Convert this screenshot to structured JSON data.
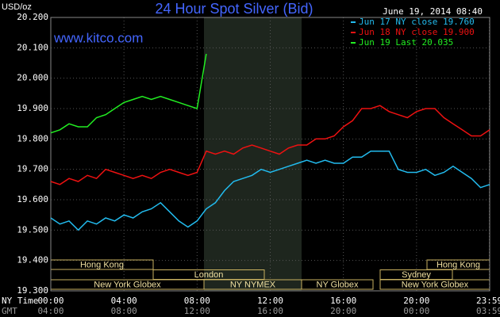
{
  "chart_data": {
    "type": "line",
    "title": "24 Hour Spot Silver (Bid)",
    "timestamp": "June 19, 2014 08:40",
    "source": "www.kitco.com",
    "y_label": "USD/oz",
    "x_label": "NY Time",
    "x2_label": "GMT",
    "xlim": [
      0,
      24
    ],
    "xticks": [
      {
        "value": 0,
        "label": "00:00"
      },
      {
        "value": 4,
        "label": "04:00"
      },
      {
        "value": 8,
        "label": "08:00"
      },
      {
        "value": 12,
        "label": "12:00"
      },
      {
        "value": 16,
        "label": "16:00"
      },
      {
        "value": 20,
        "label": "20:00"
      },
      {
        "value": 23.983,
        "label": "23:59"
      }
    ],
    "x2ticks": [
      {
        "value": 0,
        "label": "04:00"
      },
      {
        "value": 4,
        "label": "08:00"
      },
      {
        "value": 8,
        "label": "12:00"
      },
      {
        "value": 12,
        "label": "16:00"
      },
      {
        "value": 16,
        "label": "20:00"
      },
      {
        "value": 20,
        "label": "00:00"
      },
      {
        "value": 23.983,
        "label": "03:59"
      }
    ],
    "ylim": [
      19.3,
      20.2
    ],
    "yticks": [
      {
        "value": 19.3,
        "label": "19.300"
      },
      {
        "value": 19.4,
        "label": "19.400"
      },
      {
        "value": 19.5,
        "label": "19.500"
      },
      {
        "value": 19.6,
        "label": "19.600"
      },
      {
        "value": 19.7,
        "label": "19.700"
      },
      {
        "value": 19.8,
        "label": "19.800"
      },
      {
        "value": 19.9,
        "label": "19.900"
      },
      {
        "value": 20.0,
        "label": "20.000"
      },
      {
        "value": 20.1,
        "label": "20.100"
      },
      {
        "value": 20.2,
        "label": "20.200"
      }
    ],
    "grid": true,
    "x": [
      0,
      0.5,
      1,
      1.5,
      2,
      2.5,
      3,
      3.5,
      4,
      4.5,
      5,
      5.5,
      6,
      6.5,
      7,
      7.5,
      8,
      8.5,
      9,
      9.5,
      10,
      10.5,
      11,
      11.5,
      12,
      12.5,
      13,
      13.5,
      14,
      14.5,
      15,
      15.5,
      16,
      16.5,
      17,
      17.5,
      18,
      18.5,
      19,
      19.5,
      20,
      20.5,
      21,
      21.5,
      22,
      22.5,
      23,
      23.5,
      24
    ],
    "series": [
      {
        "name": "Jun 17 NY close 19.760",
        "color": "#22bbee",
        "values": [
          19.54,
          19.52,
          19.53,
          19.5,
          19.53,
          19.52,
          19.54,
          19.53,
          19.55,
          19.54,
          19.56,
          19.57,
          19.59,
          19.56,
          19.53,
          19.51,
          19.53,
          19.57,
          19.59,
          19.63,
          19.66,
          19.67,
          19.68,
          19.7,
          19.69,
          19.7,
          19.71,
          19.72,
          19.73,
          19.72,
          19.73,
          19.72,
          19.72,
          19.74,
          19.74,
          19.76,
          19.76,
          19.76,
          19.7,
          19.69,
          19.69,
          19.7,
          19.68,
          19.69,
          19.71,
          19.69,
          19.67,
          19.64,
          19.65
        ]
      },
      {
        "name": "Jun 18 NY close 19.900",
        "color": "#ee1111",
        "values": [
          19.66,
          19.65,
          19.67,
          19.66,
          19.68,
          19.67,
          19.7,
          19.69,
          19.68,
          19.67,
          19.68,
          19.67,
          19.69,
          19.7,
          19.69,
          19.68,
          19.69,
          19.76,
          19.75,
          19.76,
          19.75,
          19.77,
          19.78,
          19.77,
          19.76,
          19.75,
          19.77,
          19.78,
          19.78,
          19.8,
          19.8,
          19.81,
          19.84,
          19.86,
          19.9,
          19.9,
          19.91,
          19.89,
          19.88,
          19.87,
          19.89,
          19.9,
          19.9,
          19.87,
          19.85,
          19.83,
          19.81,
          19.81,
          19.83
        ]
      },
      {
        "name": "Jun 19 Last 20.035",
        "color": "#22ee22",
        "values": [
          19.82,
          19.83,
          19.85,
          19.84,
          19.84,
          19.87,
          19.88,
          19.9,
          19.92,
          19.93,
          19.94,
          19.93,
          19.94,
          19.93,
          19.92,
          19.91,
          19.9,
          20.08,
          null,
          null,
          null,
          null,
          null,
          null,
          null,
          null,
          null,
          null,
          null,
          null,
          null,
          null,
          null,
          null,
          null,
          null,
          null,
          null,
          null,
          null,
          null,
          null,
          null,
          null,
          null,
          null,
          null,
          null,
          null
        ]
      }
    ],
    "sessions": [
      "Hong Kong",
      "Hong Kong",
      "London",
      "Sydney",
      "New York Globex",
      "NY NYMEX",
      "NY Globex",
      "New York Globex"
    ]
  }
}
